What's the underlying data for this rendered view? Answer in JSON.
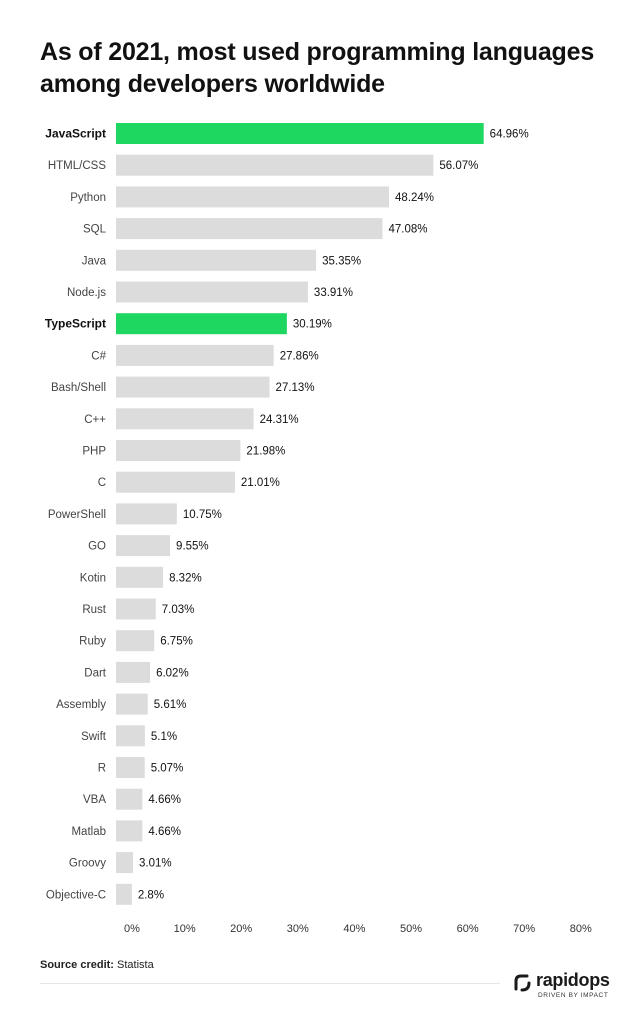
{
  "chart_data": {
    "type": "bar",
    "orientation": "horizontal",
    "title": "As of 2021, most used programming languages among developers worldwide",
    "categories": [
      "JavaScript",
      "HTML/CSS",
      "Python",
      "SQL",
      "Java",
      "Node.js",
      "TypeScript",
      "C#",
      "Bash/Shell",
      "C++",
      "PHP",
      "C",
      "PowerShell",
      "GO",
      "Kotin",
      "Rust",
      "Ruby",
      "Dart",
      "Assembly",
      "Swift",
      "R",
      "VBA",
      "Matlab",
      "Groovy",
      "Objective-C"
    ],
    "values": [
      64.96,
      56.07,
      48.24,
      47.08,
      35.35,
      33.91,
      30.19,
      27.86,
      27.13,
      24.31,
      21.98,
      21.01,
      10.75,
      9.55,
      8.32,
      7.03,
      6.75,
      6.02,
      5.61,
      5.1,
      5.07,
      4.66,
      4.66,
      3.01,
      2.8
    ],
    "value_labels": [
      "64.96%",
      "56.07%",
      "48.24%",
      "47.08%",
      "35.35%",
      "33.91%",
      "30.19%",
      "27.86%",
      "27.13%",
      "24.31%",
      "21.98%",
      "21.01%",
      "10.75%",
      "9.55%",
      "8.32%",
      "7.03%",
      "6.75%",
      "6.02%",
      "5.61%",
      "5.1%",
      "5.07%",
      "4.66%",
      "4.66%",
      "3.01%",
      "2.8%"
    ],
    "highlighted": [
      "JavaScript",
      "TypeScript"
    ],
    "xlim": [
      0,
      80
    ],
    "x_ticks": [
      "0%",
      "10%",
      "20%",
      "30%",
      "40%",
      "50%",
      "60%",
      "70%",
      "80%"
    ],
    "grid": false,
    "colors": {
      "highlight": "#1ED760",
      "default": "#DCDCDC"
    }
  },
  "source": {
    "label": "Source credit:",
    "value": "Statista"
  },
  "brand": {
    "name": "rapidops",
    "tagline": "DRIVEN BY IMPACT"
  }
}
